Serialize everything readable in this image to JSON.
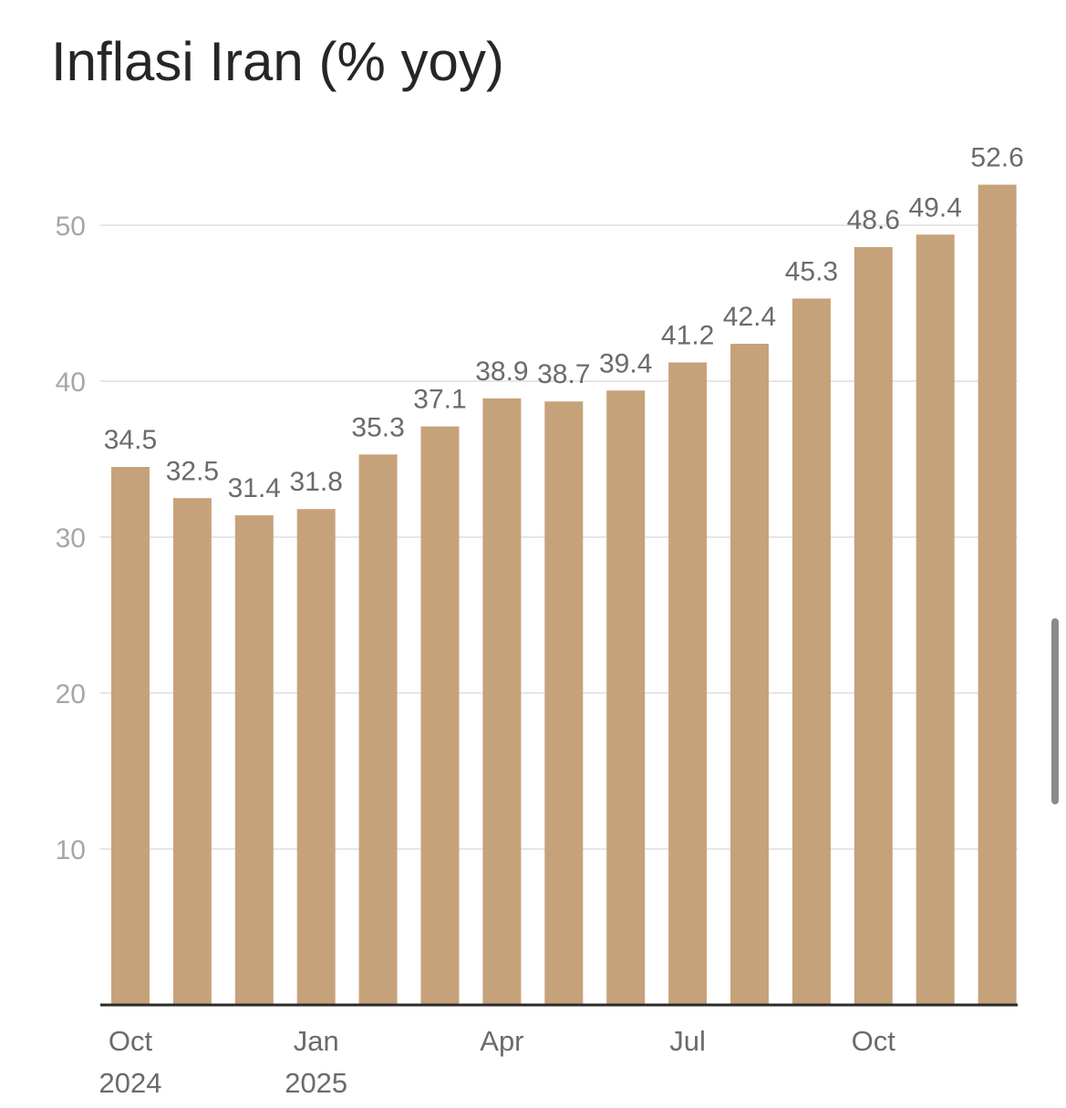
{
  "title": "Inflasi Iran (% yoy)",
  "colors": {
    "bar": "#c6a27a",
    "grid": "#e6e6e6",
    "axis": "#2b2b2b",
    "y_tick_text": "#a6a6a6",
    "x_tick_text": "#6b6b6b",
    "data_label_text": "#6b6b6b",
    "title_text": "#262626",
    "scrollbar": "#8a8a8a"
  },
  "chart_data": {
    "type": "bar",
    "title": "Inflasi Iran (% yoy)",
    "xlabel": "",
    "ylabel": "",
    "ylim": [
      0,
      55
    ],
    "yticks": [
      10,
      20,
      30,
      40,
      50
    ],
    "grid": true,
    "legend": "none",
    "categories": [
      "2024-10",
      "2024-11",
      "2024-12",
      "2025-01",
      "2025-02",
      "2025-03",
      "2025-04",
      "2025-05",
      "2025-06",
      "2025-07",
      "2025-08",
      "2025-09",
      "2025-10",
      "2025-11",
      "2025-12"
    ],
    "values": [
      34.5,
      32.5,
      31.4,
      31.8,
      35.3,
      37.1,
      38.9,
      38.7,
      39.4,
      41.2,
      42.4,
      45.3,
      48.6,
      49.4,
      52.6
    ],
    "data_labels": [
      "34.5",
      "32.5",
      "31.4",
      "31.8",
      "35.3",
      "37.1",
      "38.9",
      "38.7",
      "39.4",
      "41.2",
      "42.4",
      "45.3",
      "48.6",
      "49.4",
      "52.6"
    ],
    "x_tick_labels": [
      {
        "index": 0,
        "lines": [
          "Oct",
          "2024"
        ]
      },
      {
        "index": 3,
        "lines": [
          "Jan",
          "2025"
        ]
      },
      {
        "index": 6,
        "lines": [
          "Apr"
        ]
      },
      {
        "index": 9,
        "lines": [
          "Jul"
        ]
      },
      {
        "index": 12,
        "lines": [
          "Oct"
        ]
      }
    ]
  }
}
